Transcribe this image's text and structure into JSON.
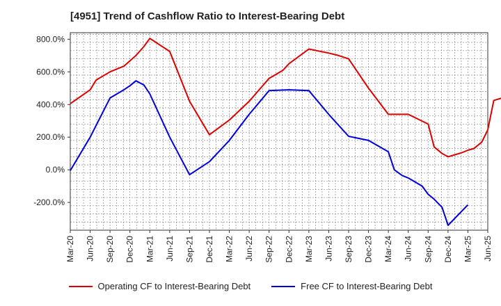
{
  "chart_data": {
    "type": "line",
    "title": "[4951]  Trend of Cashflow Ratio to Interest-Bearing Debt",
    "xlabel": "",
    "ylabel": "",
    "x_ticks": [
      "Mar-20",
      "Jun-20",
      "Sep-20",
      "Dec-20",
      "Mar-21",
      "Jun-21",
      "Sep-21",
      "Dec-21",
      "Mar-22",
      "Jun-22",
      "Sep-22",
      "Dec-22",
      "Mar-23",
      "Jun-23",
      "Sep-23",
      "Dec-23",
      "Mar-24",
      "Jun-24",
      "Sep-24",
      "Dec-24",
      "Mar-25",
      "Jun-25"
    ],
    "y_ticks": [
      "800.0%",
      "600.0%",
      "400.0%",
      "200.0%",
      "0.0%",
      "-200.0%"
    ],
    "y_tick_values": [
      800,
      600,
      400,
      200,
      0,
      -200
    ],
    "ylim": [
      -370,
      840
    ],
    "grid": true,
    "legend_position": "bottom",
    "series": [
      {
        "name": "Operating CF to Interest-Bearing Debt",
        "color": "#dd0000",
        "points": [
          [
            0,
            405
          ],
          [
            1,
            490
          ],
          [
            1.3,
            550
          ],
          [
            2,
            600
          ],
          [
            2.7,
            635
          ],
          [
            3.3,
            700
          ],
          [
            3.7,
            755
          ],
          [
            4,
            805
          ],
          [
            5,
            725
          ],
          [
            6,
            420
          ],
          [
            7,
            215
          ],
          [
            8,
            305
          ],
          [
            9,
            420
          ],
          [
            10,
            560
          ],
          [
            10.7,
            610
          ],
          [
            11,
            650
          ],
          [
            12,
            740
          ],
          [
            13,
            715
          ],
          [
            13.5,
            700
          ],
          [
            14,
            680
          ],
          [
            15,
            500
          ],
          [
            16,
            340
          ],
          [
            17,
            340
          ],
          [
            18,
            280
          ],
          [
            18.3,
            140
          ],
          [
            18.7,
            100
          ],
          [
            19,
            80
          ],
          [
            19.7,
            105
          ],
          [
            20,
            120
          ],
          [
            20.3,
            130
          ],
          [
            20.7,
            170
          ],
          [
            21,
            245
          ],
          [
            21.3,
            425
          ],
          [
            22,
            450
          ],
          [
            22.5,
            475
          ]
        ]
      },
      {
        "name": "Free CF to Interest-Bearing Debt",
        "color": "#0000dd",
        "points": [
          [
            0,
            -5
          ],
          [
            1,
            200
          ],
          [
            2,
            440
          ],
          [
            2.7,
            490
          ],
          [
            3,
            515
          ],
          [
            3.3,
            545
          ],
          [
            3.7,
            520
          ],
          [
            4,
            465
          ],
          [
            5,
            200
          ],
          [
            6,
            -30
          ],
          [
            7,
            50
          ],
          [
            8,
            180
          ],
          [
            9,
            340
          ],
          [
            10,
            485
          ],
          [
            11,
            490
          ],
          [
            12,
            485
          ],
          [
            13,
            340
          ],
          [
            14,
            205
          ],
          [
            15,
            180
          ],
          [
            16,
            110
          ],
          [
            16.3,
            0
          ],
          [
            16.7,
            -35
          ],
          [
            17,
            -50
          ],
          [
            17.7,
            -100
          ],
          [
            18,
            -150
          ],
          [
            18.3,
            -180
          ],
          [
            18.7,
            -230
          ],
          [
            19,
            -340
          ],
          [
            20,
            -215
          ]
        ]
      }
    ]
  }
}
